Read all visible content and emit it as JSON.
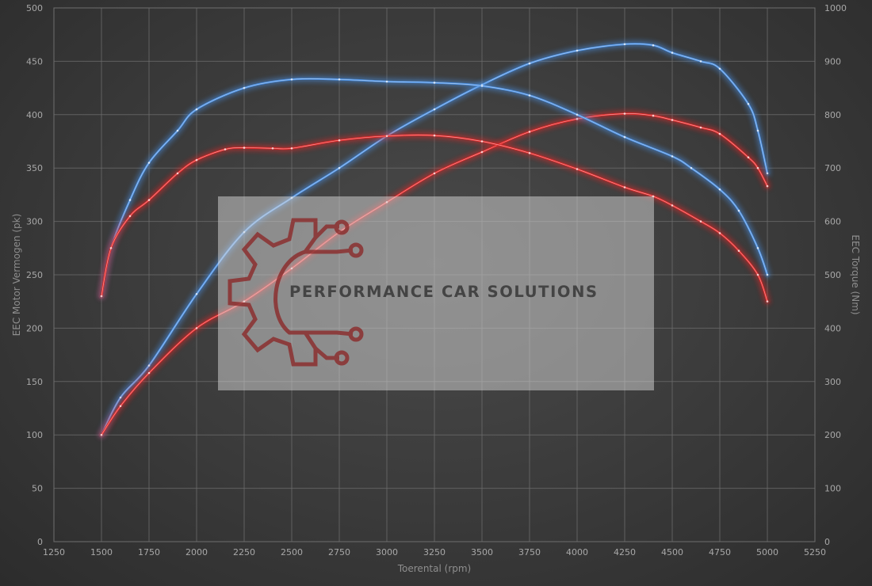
{
  "chart_data": {
    "type": "line",
    "xlabel": "Toerental (rpm)",
    "ylabel_left": "EEC Motor Vermogen (pk)",
    "ylabel_right": "EEC Torque (Nm)",
    "xlim": [
      1250,
      5250
    ],
    "ylim_left": [
      0,
      500
    ],
    "ylim_right": [
      0,
      1000
    ],
    "x_ticks": [
      1250,
      1500,
      1750,
      2000,
      2250,
      2500,
      2750,
      3000,
      3250,
      3500,
      3750,
      4000,
      4250,
      4500,
      4750,
      5000,
      5250
    ],
    "y_ticks_left": [
      0,
      50,
      100,
      150,
      200,
      250,
      300,
      350,
      400,
      450,
      500
    ],
    "y_ticks_right": [
      0,
      100,
      200,
      300,
      400,
      500,
      600,
      700,
      800,
      900,
      1000
    ],
    "grid": true,
    "series": [
      {
        "axis": "left",
        "color": "#4a8ee0",
        "points": [
          [
            1500,
            100
          ],
          [
            1600,
            135
          ],
          [
            1750,
            165
          ],
          [
            2000,
            232
          ],
          [
            2250,
            290
          ],
          [
            2500,
            322
          ],
          [
            2750,
            350
          ],
          [
            3000,
            380
          ],
          [
            3250,
            405
          ],
          [
            3500,
            428
          ],
          [
            3750,
            448
          ],
          [
            4000,
            460
          ],
          [
            4250,
            466
          ],
          [
            4400,
            465
          ],
          [
            4500,
            458
          ],
          [
            4650,
            450
          ],
          [
            4750,
            443
          ],
          [
            4900,
            410
          ],
          [
            4950,
            385
          ],
          [
            5000,
            345
          ]
        ]
      },
      {
        "axis": "left",
        "color": "#e02828",
        "points": [
          [
            1500,
            100
          ],
          [
            1600,
            127
          ],
          [
            1750,
            158
          ],
          [
            2000,
            200
          ],
          [
            2250,
            225
          ],
          [
            2500,
            256
          ],
          [
            2750,
            290
          ],
          [
            3000,
            318
          ],
          [
            3250,
            345
          ],
          [
            3500,
            365
          ],
          [
            3750,
            384
          ],
          [
            4000,
            396
          ],
          [
            4250,
            401
          ],
          [
            4400,
            399
          ],
          [
            4500,
            395
          ],
          [
            4650,
            388
          ],
          [
            4750,
            382
          ],
          [
            4900,
            360
          ],
          [
            4950,
            350
          ],
          [
            5000,
            333
          ]
        ]
      },
      {
        "axis": "right",
        "color": "#4a8ee0",
        "points": [
          [
            1500,
            460
          ],
          [
            1550,
            550
          ],
          [
            1650,
            640
          ],
          [
            1750,
            710
          ],
          [
            1900,
            770
          ],
          [
            2000,
            810
          ],
          [
            2250,
            850
          ],
          [
            2500,
            866
          ],
          [
            2750,
            866
          ],
          [
            3000,
            862
          ],
          [
            3250,
            860
          ],
          [
            3500,
            854
          ],
          [
            3750,
            836
          ],
          [
            4000,
            800
          ],
          [
            4250,
            758
          ],
          [
            4500,
            722
          ],
          [
            4600,
            700
          ],
          [
            4750,
            660
          ],
          [
            4850,
            620
          ],
          [
            4950,
            550
          ],
          [
            5000,
            500
          ]
        ]
      },
      {
        "axis": "right",
        "color": "#e02828",
        "points": [
          [
            1500,
            460
          ],
          [
            1550,
            550
          ],
          [
            1650,
            610
          ],
          [
            1750,
            640
          ],
          [
            1900,
            690
          ],
          [
            2000,
            715
          ],
          [
            2150,
            735
          ],
          [
            2250,
            738
          ],
          [
            2400,
            737
          ],
          [
            2500,
            737
          ],
          [
            2750,
            752
          ],
          [
            3000,
            760
          ],
          [
            3250,
            761
          ],
          [
            3500,
            750
          ],
          [
            3750,
            728
          ],
          [
            4000,
            698
          ],
          [
            4250,
            664
          ],
          [
            4400,
            647
          ],
          [
            4500,
            630
          ],
          [
            4650,
            600
          ],
          [
            4750,
            578
          ],
          [
            4850,
            545
          ],
          [
            4950,
            500
          ],
          [
            5000,
            450
          ]
        ]
      }
    ]
  },
  "watermark": {
    "text": "PERFORMANCE CAR SOLUTIONS",
    "logo": "gear-circuit-logo",
    "logo_color": "#8b2a2a"
  }
}
